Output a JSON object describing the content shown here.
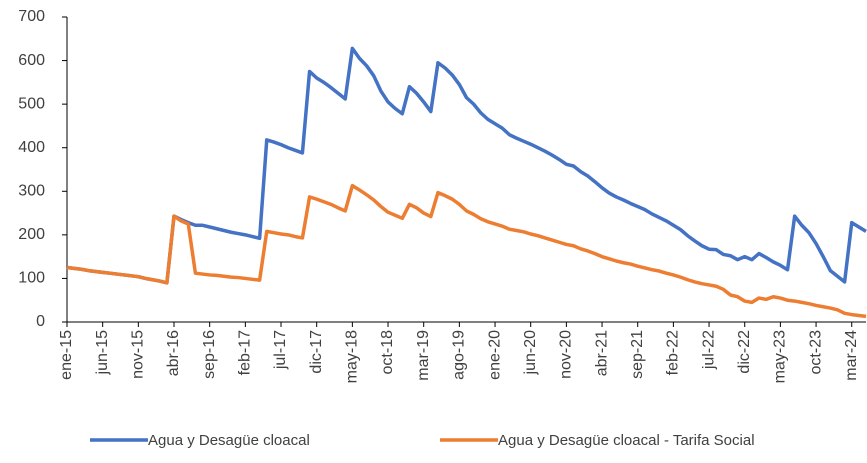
{
  "chart_data": {
    "type": "line",
    "categories": [
      "ene-15",
      null,
      null,
      null,
      null,
      "jun-15",
      null,
      null,
      null,
      null,
      "nov-15",
      null,
      null,
      null,
      null,
      "abr-16",
      null,
      null,
      null,
      null,
      "sep-16",
      null,
      null,
      null,
      null,
      "feb-17",
      null,
      null,
      null,
      null,
      "jul-17",
      null,
      null,
      null,
      null,
      "dic-17",
      null,
      null,
      null,
      null,
      "may-18",
      null,
      null,
      null,
      null,
      "oct-18",
      null,
      null,
      null,
      null,
      "mar-19",
      null,
      null,
      null,
      null,
      "ago-19",
      null,
      null,
      null,
      null,
      "ene-20",
      null,
      null,
      null,
      null,
      "jun-20",
      null,
      null,
      null,
      null,
      "nov-20",
      null,
      null,
      null,
      null,
      "abr-21",
      null,
      null,
      null,
      null,
      "sep-21",
      null,
      null,
      null,
      null,
      "feb-22",
      null,
      null,
      null,
      null,
      "jul-22",
      null,
      null,
      null,
      null,
      "dic-22",
      null,
      null,
      null,
      null,
      "may-23",
      null,
      null,
      null,
      null,
      "oct-23",
      null,
      null,
      null,
      null,
      "mar-24",
      null,
      null
    ],
    "series": [
      {
        "name": "Agua y Desagüe cloacal",
        "color": "#4472c4",
        "values": [
          125,
          123,
          121,
          118,
          116,
          114,
          112,
          110,
          108,
          106,
          104,
          100,
          97,
          94,
          90,
          243,
          235,
          228,
          222,
          222,
          218,
          214,
          210,
          206,
          203,
          200,
          196,
          192,
          418,
          413,
          407,
          400,
          394,
          388,
          575,
          560,
          550,
          538,
          525,
          512,
          628,
          605,
          588,
          565,
          530,
          505,
          490,
          478,
          540,
          525,
          505,
          483,
          595,
          583,
          567,
          545,
          515,
          500,
          480,
          465,
          455,
          445,
          430,
          422,
          415,
          408,
          400,
          392,
          383,
          373,
          362,
          358,
          345,
          335,
          322,
          308,
          296,
          287,
          280,
          272,
          265,
          258,
          248,
          240,
          232,
          222,
          212,
          198,
          186,
          175,
          167,
          166,
          155,
          152,
          143,
          150,
          143,
          157,
          148,
          138,
          130,
          120,
          243,
          222,
          205,
          180,
          150,
          118,
          105,
          92,
          228,
          218,
          208
        ]
      },
      {
        "name": "Agua y Desagüe cloacal - Tarifa Social",
        "color": "#ed7d31",
        "values": [
          125,
          123,
          121,
          118,
          116,
          114,
          112,
          110,
          108,
          106,
          104,
          100,
          97,
          94,
          90,
          243,
          232,
          225,
          112,
          110,
          108,
          107,
          105,
          103,
          102,
          100,
          98,
          96,
          208,
          205,
          202,
          200,
          196,
          193,
          287,
          282,
          276,
          270,
          262,
          255,
          313,
          303,
          292,
          280,
          265,
          252,
          245,
          238,
          270,
          262,
          250,
          242,
          297,
          290,
          282,
          270,
          255,
          247,
          237,
          230,
          225,
          220,
          213,
          210,
          207,
          202,
          198,
          193,
          188,
          183,
          178,
          175,
          168,
          163,
          157,
          150,
          145,
          140,
          136,
          133,
          128,
          124,
          120,
          117,
          112,
          108,
          103,
          97,
          92,
          88,
          85,
          82,
          75,
          62,
          58,
          48,
          45,
          55,
          52,
          58,
          55,
          50,
          48,
          45,
          42,
          38,
          35,
          32,
          28,
          20,
          17,
          15,
          13
        ]
      }
    ],
    "ylim": [
      0,
      700
    ],
    "yticks": [
      0,
      100,
      200,
      300,
      400,
      500,
      600,
      700
    ],
    "grid": false
  }
}
